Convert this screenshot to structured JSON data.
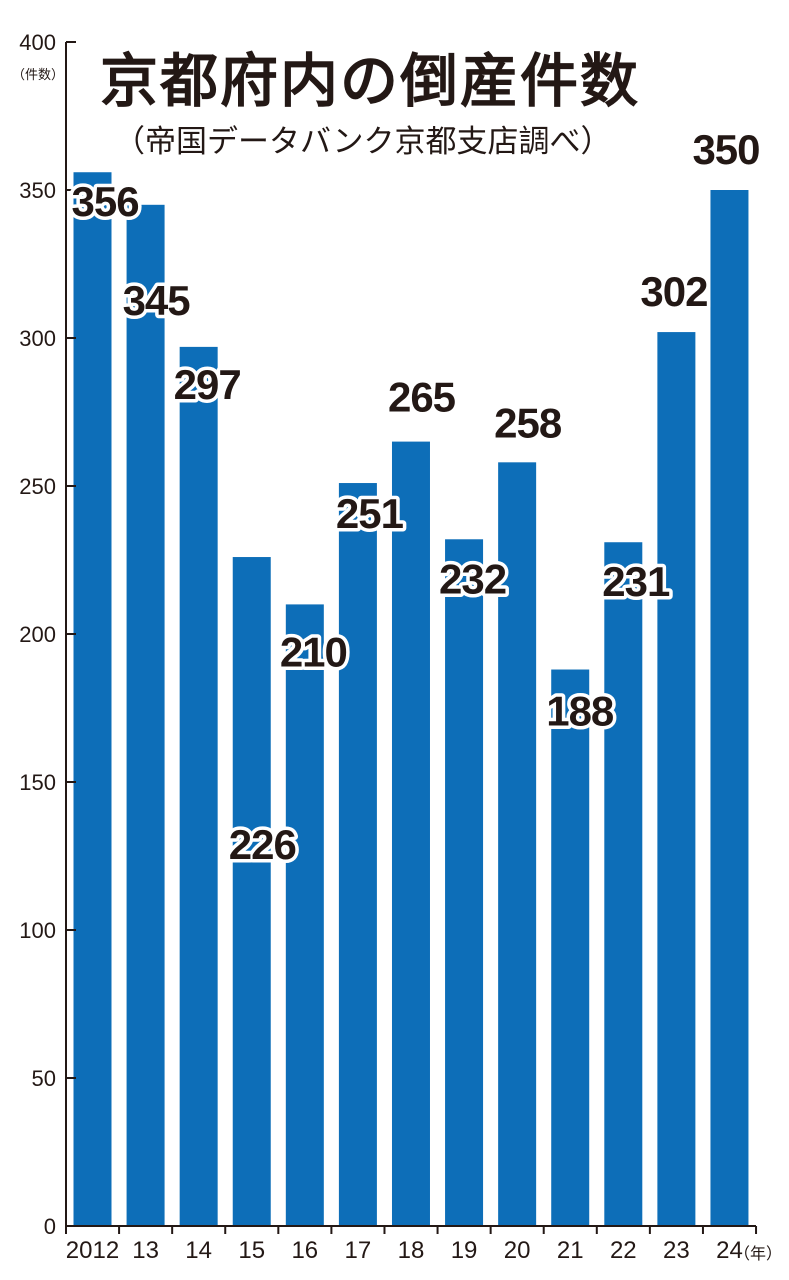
{
  "chart_data": {
    "type": "bar",
    "title": "京都府内の倒産件数",
    "subtitle": "（帝国データバンク京都支店調べ）",
    "y_unit": "（件数）",
    "x_unit": "（年）",
    "ylim": [
      0,
      400
    ],
    "y_ticks": [
      0,
      50,
      100,
      150,
      200,
      250,
      300,
      350,
      400
    ],
    "categories": [
      "2012",
      "13",
      "14",
      "15",
      "16",
      "17",
      "18",
      "19",
      "20",
      "21",
      "22",
      "23",
      "24"
    ],
    "values": [
      356,
      345,
      297,
      226,
      210,
      251,
      265,
      232,
      258,
      188,
      231,
      302,
      350
    ],
    "data_labels": [
      "356",
      "345",
      "297",
      "226",
      "210",
      "251",
      "265",
      "232",
      "258",
      "188",
      "231",
      "302",
      "350"
    ],
    "bar_color": "#0d6eb8",
    "grid": false
  }
}
